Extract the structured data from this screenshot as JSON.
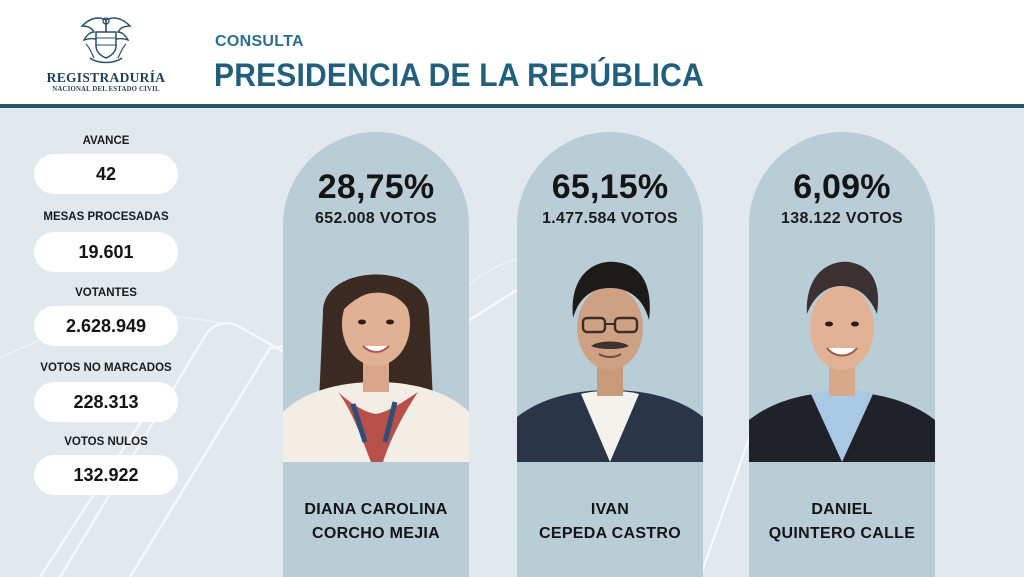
{
  "header": {
    "logo": {
      "name": "REGISTRADURÍA",
      "subtitle": "NACIONAL DEL ESTADO CIVIL",
      "emblem_icon": "colombia-coat-of-arms-icon"
    },
    "subtitle": "CONSULTA",
    "title": "PRESIDENCIA DE LA REPÚBLICA"
  },
  "stats": [
    {
      "label": "AVANCE",
      "value": "42"
    },
    {
      "label": "MESAS PROCESADAS",
      "value": "19.601"
    },
    {
      "label": "VOTANTES",
      "value": "2.628.949"
    },
    {
      "label": "VOTOS NO MARCADOS",
      "value": "228.313"
    },
    {
      "label": "VOTOS NULOS",
      "value": "132.922"
    }
  ],
  "candidates": [
    {
      "percent": "28,75%",
      "votes": "652.008 VOTOS",
      "name_line1": "DIANA CAROLINA",
      "name_line2": "CORCHO MEJIA",
      "photo_icon": "candidate-portrait-icon"
    },
    {
      "percent": "65,15%",
      "votes": "1.477.584 VOTOS",
      "name_line1": "IVAN",
      "name_line2": "CEPEDA CASTRO",
      "photo_icon": "candidate-portrait-icon"
    },
    {
      "percent": "6,09%",
      "votes": "138.122 VOTOS",
      "name_line1": "DANIEL",
      "name_line2": "QUINTERO CALLE",
      "photo_icon": "candidate-portrait-icon"
    }
  ],
  "colors": {
    "accent": "#28566e",
    "title": "#225f7c",
    "background": "#e1e9ee",
    "card": "#b9cdd7",
    "pill": "#ffffff"
  }
}
